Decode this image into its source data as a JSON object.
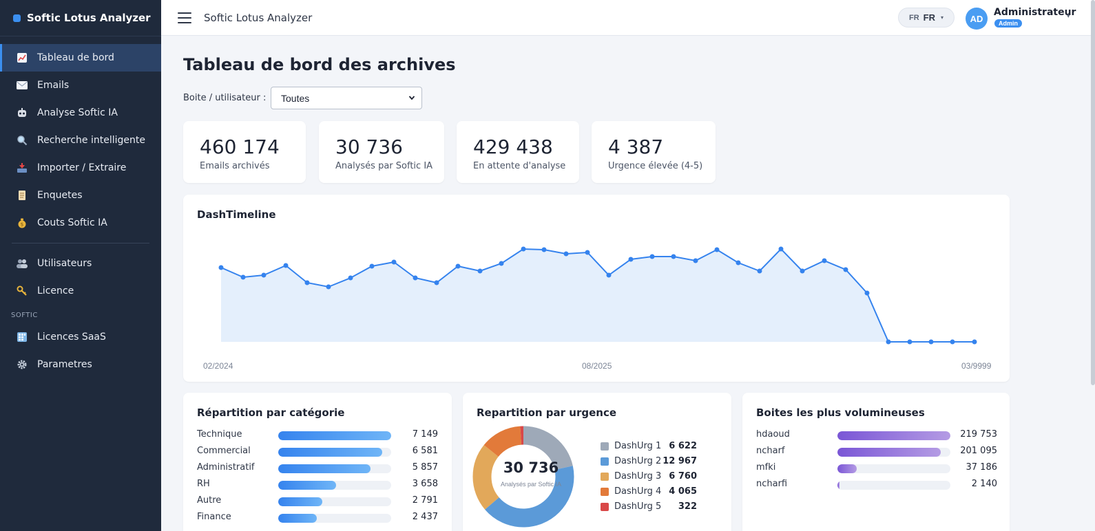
{
  "app": {
    "brand": "Softic Lotus Analyzer",
    "header_title": "Softic Lotus Analyzer"
  },
  "sidebar": {
    "items": [
      {
        "label": "Tableau de bord",
        "icon": "chart-icon",
        "active": true
      },
      {
        "label": "Emails",
        "icon": "mail-icon"
      },
      {
        "label": "Analyse Softic IA",
        "icon": "robot-icon"
      },
      {
        "label": "Recherche intelligente",
        "icon": "search-icon"
      },
      {
        "label": "Importer / Extraire",
        "icon": "inbox-tray-icon"
      },
      {
        "label": "Enquetes",
        "icon": "scroll-icon"
      },
      {
        "label": "Couts Softic IA",
        "icon": "money-bag-icon"
      }
    ],
    "items2": [
      {
        "label": "Utilisateurs",
        "icon": "users-icon"
      },
      {
        "label": "Licence",
        "icon": "key-icon"
      }
    ],
    "section": "SOFTIC",
    "items3": [
      {
        "label": "Licences SaaS",
        "icon": "grid-icon"
      },
      {
        "label": "Parametres",
        "icon": "gear-icon"
      }
    ]
  },
  "header": {
    "lang_small": "FR",
    "lang": "FR",
    "avatar": "AD",
    "user_name": "Administrateur",
    "user_role": "Admin"
  },
  "main": {
    "title": "Tableau de bord des archives",
    "filter_label": "Boite / utilisateur :",
    "filter_value": "Toutes",
    "kpis": [
      {
        "value": "460 174",
        "label": "Emails archivés"
      },
      {
        "value": "30 736",
        "label": "Analysés par Softic IA"
      },
      {
        "value": "429 438",
        "label": "En attente d'analyse"
      },
      {
        "value": "4 387",
        "label": "Urgence élevée (4-5)"
      }
    ]
  },
  "timeline": {
    "title": "DashTimeline",
    "x_labels": [
      "02/2024",
      "08/2025",
      "03/9999"
    ],
    "color": "#3583ee",
    "fill": "#e4effc"
  },
  "categories": {
    "title": "Répartition par catégorie",
    "max": 7149,
    "items": [
      {
        "label": "Technique",
        "value": 7149,
        "display": "7 149"
      },
      {
        "label": "Commercial",
        "value": 6581,
        "display": "6 581"
      },
      {
        "label": "Administratif",
        "value": 5857,
        "display": "5 857"
      },
      {
        "label": "RH",
        "value": 3658,
        "display": "3 658"
      },
      {
        "label": "Autre",
        "value": 2791,
        "display": "2 791"
      },
      {
        "label": "Finance",
        "value": 2437,
        "display": "2 437"
      }
    ]
  },
  "urgency": {
    "title": "Repartition par urgence",
    "total": "30 736",
    "total_label": "Analysés par Softic IA",
    "items": [
      {
        "label": "DashUrg 1",
        "value": 6622,
        "display": "6 622",
        "color": "#9ea9b8"
      },
      {
        "label": "DashUrg 2",
        "value": 12967,
        "display": "12 967",
        "color": "#5b9ad8"
      },
      {
        "label": "DashUrg 3",
        "value": 6760,
        "display": "6 760",
        "color": "#e2a85a"
      },
      {
        "label": "DashUrg 4",
        "value": 4065,
        "display": "4 065",
        "color": "#e27a3a"
      },
      {
        "label": "DashUrg 5",
        "value": 322,
        "display": "322",
        "color": "#d94848"
      }
    ]
  },
  "boxes": {
    "title": "Boites les plus volumineuses",
    "max": 219753,
    "items": [
      {
        "label": "hdaoud",
        "value": 219753,
        "display": "219 753"
      },
      {
        "label": "ncharf",
        "value": 201095,
        "display": "201 095"
      },
      {
        "label": "mfki",
        "value": 37186,
        "display": "37 186"
      },
      {
        "label": "ncharfi",
        "value": 2140,
        "display": "2 140"
      }
    ]
  }
}
